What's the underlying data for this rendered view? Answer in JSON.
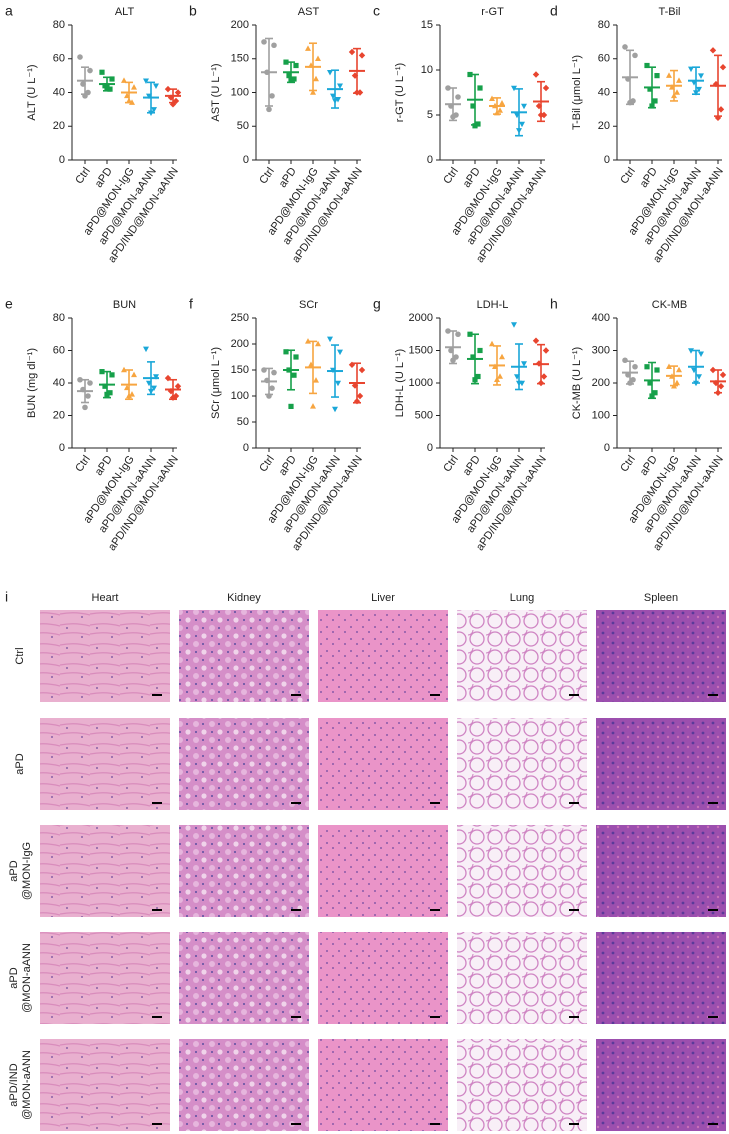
{
  "chart_data": [
    {
      "type": "dotplot",
      "panel": "a",
      "title": "ALT",
      "ylabel": "ALT (U L⁻¹)",
      "categories": [
        "Ctrl",
        "aPD",
        "aPD@MON-IgG",
        "aPD@MON-aANN",
        "aPD/IND@MON-aANN"
      ],
      "colors": [
        "#a0a0a0",
        "#16a04a",
        "#f7a540",
        "#1aa7d8",
        "#e8452f"
      ],
      "markers": [
        "circle",
        "square",
        "triangle",
        "triangle-down",
        "diamond"
      ],
      "points": [
        [
          61,
          53,
          45,
          40,
          38
        ],
        [
          52,
          48,
          44,
          42,
          43
        ],
        [
          47,
          43,
          38,
          34,
          35
        ],
        [
          47,
          44,
          38,
          30,
          28
        ],
        [
          42,
          40,
          37,
          35,
          33
        ]
      ],
      "mean": [
        47,
        45,
        40,
        37,
        38
      ],
      "sd": [
        8,
        4,
        6,
        9,
        4
      ],
      "ylim": [
        0,
        80
      ],
      "yticks": [
        0,
        20,
        40,
        60,
        80
      ]
    },
    {
      "type": "dotplot",
      "panel": "b",
      "title": "AST",
      "ylabel": "AST (U L⁻¹)",
      "categories": [
        "Ctrl",
        "aPD",
        "aPD@MON-IgG",
        "aPD@MON-aANN",
        "aPD/IND@MON-aANN"
      ],
      "colors": [
        "#a0a0a0",
        "#16a04a",
        "#f7a540",
        "#1aa7d8",
        "#e8452f"
      ],
      "markers": [
        "circle",
        "square",
        "triangle",
        "triangle-down",
        "diamond"
      ],
      "points": [
        [
          175,
          170,
          130,
          95,
          75
        ],
        [
          145,
          140,
          125,
          120,
          118
        ],
        [
          165,
          150,
          140,
          120,
          100
        ],
        [
          130,
          110,
          95,
          90,
          88
        ],
        [
          160,
          155,
          125,
          100,
          100
        ]
      ],
      "mean": [
        130,
        130,
        138,
        105,
        132
      ],
      "sd": [
        50,
        15,
        35,
        28,
        33
      ],
      "ylim": [
        0,
        200
      ],
      "yticks": [
        0,
        50,
        100,
        150,
        200
      ]
    },
    {
      "type": "dotplot",
      "panel": "c",
      "title": "r-GT",
      "ylabel": "r-GT (U L⁻¹)",
      "categories": [
        "Ctrl",
        "aPD",
        "aPD@MON-IgG",
        "aPD@MON-aANN",
        "aPD/IND@MON-aANN"
      ],
      "colors": [
        "#a0a0a0",
        "#16a04a",
        "#f7a540",
        "#1aa7d8",
        "#e8452f"
      ],
      "markers": [
        "circle",
        "square",
        "triangle",
        "triangle-down",
        "diamond"
      ],
      "points": [
        [
          8,
          7,
          6,
          5,
          4.8
        ],
        [
          9.5,
          8,
          6,
          4,
          3.8
        ],
        [
          6.8,
          6.3,
          6,
          5.5,
          5.2
        ],
        [
          8,
          6,
          5,
          4,
          3.3
        ],
        [
          9.5,
          8,
          6,
          5,
          5
        ]
      ],
      "mean": [
        6.2,
        6.7,
        6,
        5.3,
        6.5
      ],
      "sd": [
        1.8,
        2.8,
        0.9,
        2.6,
        2.2
      ],
      "ylim": [
        0,
        15
      ],
      "yticks": [
        0,
        5,
        10,
        15
      ]
    },
    {
      "type": "dotplot",
      "panel": "d",
      "title": "T-Bil",
      "ylabel": "T-Bil (μmol L⁻¹)",
      "categories": [
        "Ctrl",
        "aPD",
        "aPD@MON-IgG",
        "aPD@MON-aANN",
        "aPD/IND@MON-aANN"
      ],
      "colors": [
        "#a0a0a0",
        "#16a04a",
        "#f7a540",
        "#1aa7d8",
        "#e8452f"
      ],
      "markers": [
        "circle",
        "square",
        "triangle",
        "triangle-down",
        "diamond"
      ],
      "points": [
        [
          67,
          62,
          48,
          35,
          34
        ],
        [
          56,
          50,
          42,
          35,
          32
        ],
        [
          50,
          47,
          43,
          40,
          38
        ],
        [
          54,
          50,
          46,
          42,
          40
        ],
        [
          65,
          55,
          45,
          30,
          25
        ]
      ],
      "mean": [
        49,
        43,
        44,
        47,
        44
      ],
      "sd": [
        16,
        12,
        9,
        8,
        18
      ],
      "ylim": [
        0,
        80
      ],
      "yticks": [
        0,
        20,
        40,
        60,
        80
      ]
    },
    {
      "type": "dotplot",
      "panel": "e",
      "title": "BUN",
      "ylabel": "BUN (mg dl⁻¹)",
      "categories": [
        "Ctrl",
        "aPD",
        "aPD@MON-IgG",
        "aPD@MON-aANN",
        "aPD/IND@MON-aANN"
      ],
      "colors": [
        "#a0a0a0",
        "#16a04a",
        "#f7a540",
        "#1aa7d8",
        "#e8452f"
      ],
      "markers": [
        "circle",
        "square",
        "triangle",
        "triangle-down",
        "diamond"
      ],
      "points": [
        [
          42,
          40,
          36,
          32,
          25
        ],
        [
          47,
          45,
          38,
          34,
          33
        ],
        [
          48,
          45,
          37,
          33,
          32
        ],
        [
          61,
          44,
          40,
          37,
          35
        ],
        [
          43,
          38,
          35,
          32,
          31
        ]
      ],
      "mean": [
        35,
        39,
        39,
        43,
        36
      ],
      "sd": [
        7,
        8,
        9,
        10,
        6
      ],
      "ylim": [
        0,
        80
      ],
      "yticks": [
        0,
        20,
        40,
        60,
        80
      ]
    },
    {
      "type": "dotplot",
      "panel": "f",
      "title": "SCr",
      "ylabel": "SCr (μmol L⁻¹)",
      "categories": [
        "Ctrl",
        "aPD",
        "aPD@MON-IgG",
        "aPD@MON-aANN",
        "aPD/IND@MON-aANN"
      ],
      "colors": [
        "#a0a0a0",
        "#16a04a",
        "#f7a540",
        "#1aa7d8",
        "#e8452f"
      ],
      "markers": [
        "circle",
        "square",
        "triangle",
        "triangle-down",
        "diamond"
      ],
      "points": [
        [
          150,
          145,
          130,
          115,
          100
        ],
        [
          185,
          175,
          150,
          140,
          80
        ],
        [
          205,
          200,
          160,
          130,
          80
        ],
        [
          210,
          185,
          150,
          125,
          75
        ],
        [
          160,
          150,
          120,
          100,
          90
        ]
      ],
      "mean": [
        128,
        150,
        155,
        148,
        125
      ],
      "sd": [
        25,
        38,
        50,
        50,
        38
      ],
      "ylim": [
        0,
        250
      ],
      "yticks": [
        0,
        50,
        100,
        150,
        200,
        250
      ]
    },
    {
      "type": "dotplot",
      "panel": "g",
      "title": "LDH-L",
      "ylabel": "LDH-L (U L⁻¹)",
      "categories": [
        "Ctrl",
        "aPD",
        "aPD@MON-IgG",
        "aPD@MON-aANN",
        "aPD/IND@MON-aANN"
      ],
      "colors": [
        "#a0a0a0",
        "#16a04a",
        "#f7a540",
        "#1aa7d8",
        "#e8452f"
      ],
      "markers": [
        "circle",
        "square",
        "triangle",
        "triangle-down",
        "diamond"
      ],
      "points": [
        [
          1800,
          1750,
          1500,
          1400,
          1350
        ],
        [
          1750,
          1500,
          1400,
          1100,
          1050
        ],
        [
          1600,
          1400,
          1250,
          1100,
          1050
        ],
        [
          1900,
          1300,
          1100,
          1000,
          1000
        ],
        [
          1650,
          1500,
          1300,
          1100,
          1000
        ]
      ],
      "mean": [
        1550,
        1370,
        1270,
        1250,
        1290
      ],
      "sd": [
        250,
        380,
        300,
        350,
        300
      ],
      "ylim": [
        0,
        2000
      ],
      "yticks": [
        0,
        500,
        1000,
        1500,
        2000
      ]
    },
    {
      "type": "dotplot",
      "panel": "h",
      "title": "CK-MB",
      "ylabel": "CK-MB (U L⁻¹)",
      "categories": [
        "Ctrl",
        "aPD",
        "aPD@MON-IgG",
        "aPD@MON-aANN",
        "aPD/IND@MON-aANN"
      ],
      "colors": [
        "#a0a0a0",
        "#16a04a",
        "#f7a540",
        "#1aa7d8",
        "#e8452f"
      ],
      "markers": [
        "circle",
        "square",
        "triangle",
        "triangle-down",
        "diamond"
      ],
      "points": [
        [
          270,
          250,
          225,
          210,
          200
        ],
        [
          250,
          240,
          200,
          170,
          160
        ],
        [
          250,
          240,
          220,
          200,
          190
        ],
        [
          300,
          290,
          240,
          220,
          200
        ],
        [
          240,
          225,
          200,
          190,
          170
        ]
      ],
      "mean": [
        232,
        208,
        222,
        250,
        205
      ],
      "sd": [
        35,
        55,
        30,
        50,
        35
      ],
      "ylim": [
        0,
        400
      ],
      "yticks": [
        0,
        100,
        200,
        300,
        400
      ]
    }
  ],
  "histology": {
    "panel": "i",
    "columns": [
      "Heart",
      "Kidney",
      "Liver",
      "Lung",
      "Spleen"
    ],
    "rows": [
      [
        "Ctrl"
      ],
      [
        "aPD"
      ],
      [
        "aPD",
        "@MON-IgG"
      ],
      [
        "aPD",
        "@MON-aANN"
      ],
      [
        "aPD/IND",
        "@MON-aANN"
      ]
    ]
  }
}
